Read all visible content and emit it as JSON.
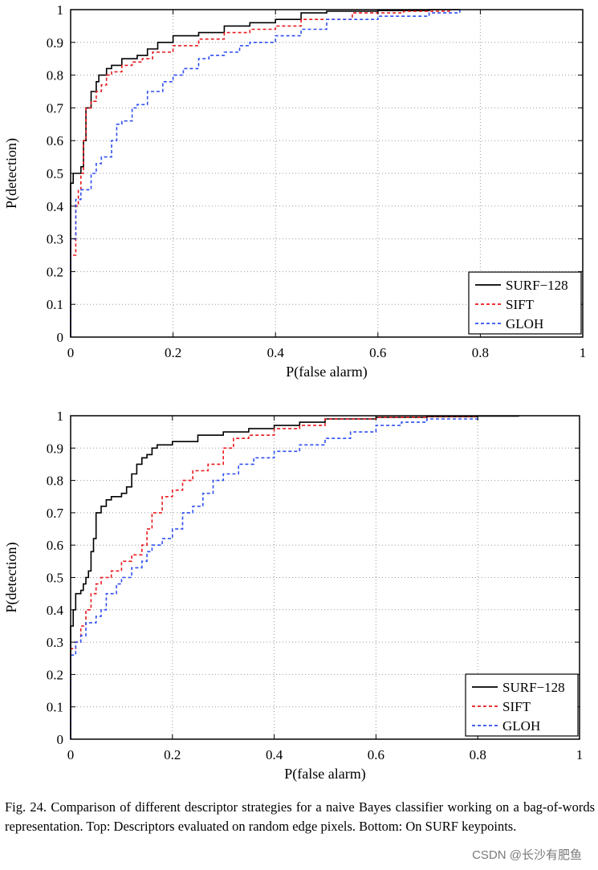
{
  "chart_data": [
    {
      "type": "line",
      "xlabel": "P(false alarm)",
      "ylabel": "P(detection)",
      "xlim": [
        0,
        1
      ],
      "ylim": [
        0,
        1
      ],
      "xticks": [
        "0",
        "0.2",
        "0.4",
        "0.6",
        "0.8",
        "1"
      ],
      "yticks": [
        "0",
        "0.1",
        "0.2",
        "0.3",
        "0.4",
        "0.5",
        "0.6",
        "0.7",
        "0.8",
        "0.9",
        "1"
      ],
      "grid": true,
      "legend_position": "bottom-right",
      "series": [
        {
          "name": "SURF−128",
          "color": "#000000",
          "dash": "solid",
          "points": [
            [
              0,
              0
            ],
            [
              0,
              0.47
            ],
            [
              0.005,
              0.5
            ],
            [
              0.02,
              0.52
            ],
            [
              0.025,
              0.6
            ],
            [
              0.03,
              0.7
            ],
            [
              0.04,
              0.75
            ],
            [
              0.05,
              0.78
            ],
            [
              0.055,
              0.8
            ],
            [
              0.07,
              0.82
            ],
            [
              0.08,
              0.83
            ],
            [
              0.1,
              0.85
            ],
            [
              0.13,
              0.86
            ],
            [
              0.15,
              0.88
            ],
            [
              0.17,
              0.9
            ],
            [
              0.2,
              0.92
            ],
            [
              0.25,
              0.93
            ],
            [
              0.3,
              0.95
            ],
            [
              0.35,
              0.96
            ],
            [
              0.4,
              0.97
            ],
            [
              0.45,
              0.99
            ],
            [
              0.5,
              0.995
            ],
            [
              0.6,
              0.997
            ],
            [
              0.7,
              1.0
            ],
            [
              0.76,
              1.0
            ]
          ]
        },
        {
          "name": "SIFT",
          "color": "#e8191d",
          "dash": "4,3",
          "points": [
            [
              0,
              0
            ],
            [
              0,
              0.25
            ],
            [
              0.01,
              0.4
            ],
            [
              0.015,
              0.45
            ],
            [
              0.02,
              0.5
            ],
            [
              0.025,
              0.6
            ],
            [
              0.03,
              0.7
            ],
            [
              0.04,
              0.72
            ],
            [
              0.05,
              0.75
            ],
            [
              0.06,
              0.77
            ],
            [
              0.07,
              0.8
            ],
            [
              0.08,
              0.81
            ],
            [
              0.1,
              0.83
            ],
            [
              0.12,
              0.84
            ],
            [
              0.14,
              0.85
            ],
            [
              0.16,
              0.87
            ],
            [
              0.2,
              0.89
            ],
            [
              0.25,
              0.91
            ],
            [
              0.3,
              0.93
            ],
            [
              0.35,
              0.94
            ],
            [
              0.4,
              0.95
            ],
            [
              0.45,
              0.97
            ],
            [
              0.55,
              0.99
            ],
            [
              0.65,
              0.995
            ],
            [
              0.74,
              1.0
            ]
          ]
        },
        {
          "name": "GLOH",
          "color": "#2f4ff0",
          "dash": "4,3",
          "points": [
            [
              0,
              0
            ],
            [
              0,
              0.3
            ],
            [
              0.01,
              0.42
            ],
            [
              0.02,
              0.45
            ],
            [
              0.04,
              0.5
            ],
            [
              0.05,
              0.53
            ],
            [
              0.06,
              0.55
            ],
            [
              0.08,
              0.6
            ],
            [
              0.09,
              0.65
            ],
            [
              0.1,
              0.66
            ],
            [
              0.12,
              0.7
            ],
            [
              0.13,
              0.71
            ],
            [
              0.15,
              0.75
            ],
            [
              0.18,
              0.78
            ],
            [
              0.2,
              0.8
            ],
            [
              0.22,
              0.82
            ],
            [
              0.25,
              0.85
            ],
            [
              0.27,
              0.86
            ],
            [
              0.3,
              0.87
            ],
            [
              0.33,
              0.89
            ],
            [
              0.35,
              0.9
            ],
            [
              0.4,
              0.92
            ],
            [
              0.45,
              0.94
            ],
            [
              0.5,
              0.97
            ],
            [
              0.6,
              0.98
            ],
            [
              0.7,
              0.99
            ],
            [
              0.76,
              1.0
            ]
          ]
        }
      ]
    },
    {
      "type": "line",
      "xlabel": "P(false alarm)",
      "ylabel": "P(detection)",
      "xlim": [
        0,
        1
      ],
      "ylim": [
        0,
        1
      ],
      "xticks": [
        "0",
        "0.2",
        "0.4",
        "0.6",
        "0.8",
        "1"
      ],
      "yticks": [
        "0",
        "0.1",
        "0.2",
        "0.3",
        "0.4",
        "0.5",
        "0.6",
        "0.7",
        "0.8",
        "0.9",
        "1"
      ],
      "grid": true,
      "legend_position": "bottom-right",
      "series": [
        {
          "name": "SURF−128",
          "color": "#000000",
          "dash": "solid",
          "points": [
            [
              0,
              0
            ],
            [
              0,
              0.35
            ],
            [
              0.005,
              0.4
            ],
            [
              0.01,
              0.45
            ],
            [
              0.02,
              0.46
            ],
            [
              0.025,
              0.48
            ],
            [
              0.03,
              0.5
            ],
            [
              0.035,
              0.52
            ],
            [
              0.04,
              0.58
            ],
            [
              0.045,
              0.62
            ],
            [
              0.05,
              0.7
            ],
            [
              0.06,
              0.72
            ],
            [
              0.07,
              0.74
            ],
            [
              0.08,
              0.75
            ],
            [
              0.1,
              0.76
            ],
            [
              0.11,
              0.78
            ],
            [
              0.12,
              0.82
            ],
            [
              0.13,
              0.85
            ],
            [
              0.14,
              0.87
            ],
            [
              0.15,
              0.88
            ],
            [
              0.16,
              0.9
            ],
            [
              0.17,
              0.91
            ],
            [
              0.2,
              0.92
            ],
            [
              0.25,
              0.94
            ],
            [
              0.3,
              0.95
            ],
            [
              0.35,
              0.96
            ],
            [
              0.4,
              0.97
            ],
            [
              0.45,
              0.98
            ],
            [
              0.5,
              0.99
            ],
            [
              0.6,
              0.995
            ],
            [
              0.7,
              0.997
            ],
            [
              0.8,
              0.999
            ],
            [
              0.88,
              1.0
            ]
          ]
        },
        {
          "name": "SIFT",
          "color": "#e8191d",
          "dash": "4,3",
          "points": [
            [
              0,
              0
            ],
            [
              0,
              0.28
            ],
            [
              0.01,
              0.3
            ],
            [
              0.02,
              0.35
            ],
            [
              0.03,
              0.4
            ],
            [
              0.04,
              0.45
            ],
            [
              0.05,
              0.48
            ],
            [
              0.06,
              0.5
            ],
            [
              0.08,
              0.52
            ],
            [
              0.1,
              0.55
            ],
            [
              0.12,
              0.57
            ],
            [
              0.14,
              0.6
            ],
            [
              0.15,
              0.65
            ],
            [
              0.16,
              0.7
            ],
            [
              0.18,
              0.75
            ],
            [
              0.2,
              0.77
            ],
            [
              0.22,
              0.8
            ],
            [
              0.24,
              0.83
            ],
            [
              0.27,
              0.85
            ],
            [
              0.3,
              0.9
            ],
            [
              0.32,
              0.93
            ],
            [
              0.35,
              0.94
            ],
            [
              0.4,
              0.96
            ],
            [
              0.45,
              0.97
            ],
            [
              0.5,
              0.99
            ],
            [
              0.6,
              0.995
            ],
            [
              0.7,
              0.998
            ],
            [
              0.8,
              1.0
            ]
          ]
        },
        {
          "name": "GLOH",
          "color": "#2f4ff0",
          "dash": "4,3",
          "points": [
            [
              0,
              0
            ],
            [
              0,
              0.26
            ],
            [
              0.01,
              0.3
            ],
            [
              0.02,
              0.32
            ],
            [
              0.03,
              0.36
            ],
            [
              0.05,
              0.38
            ],
            [
              0.06,
              0.4
            ],
            [
              0.07,
              0.45
            ],
            [
              0.09,
              0.48
            ],
            [
              0.1,
              0.5
            ],
            [
              0.12,
              0.53
            ],
            [
              0.14,
              0.55
            ],
            [
              0.15,
              0.58
            ],
            [
              0.16,
              0.6
            ],
            [
              0.18,
              0.62
            ],
            [
              0.2,
              0.65
            ],
            [
              0.22,
              0.7
            ],
            [
              0.24,
              0.72
            ],
            [
              0.26,
              0.76
            ],
            [
              0.28,
              0.8
            ],
            [
              0.3,
              0.82
            ],
            [
              0.33,
              0.85
            ],
            [
              0.36,
              0.87
            ],
            [
              0.4,
              0.89
            ],
            [
              0.45,
              0.91
            ],
            [
              0.5,
              0.93
            ],
            [
              0.55,
              0.95
            ],
            [
              0.6,
              0.97
            ],
            [
              0.65,
              0.98
            ],
            [
              0.7,
              0.99
            ],
            [
              0.8,
              1.0
            ]
          ]
        }
      ]
    }
  ],
  "caption": {
    "text": "Fig. 24. Comparison of different descriptor strategies for a naive Bayes classifier working on a bag-of-words representation. Top: Descriptors evaluated on random edge pixels. Bottom: On SURF keypoints."
  },
  "watermark": "CSDN @长沙有肥鱼"
}
